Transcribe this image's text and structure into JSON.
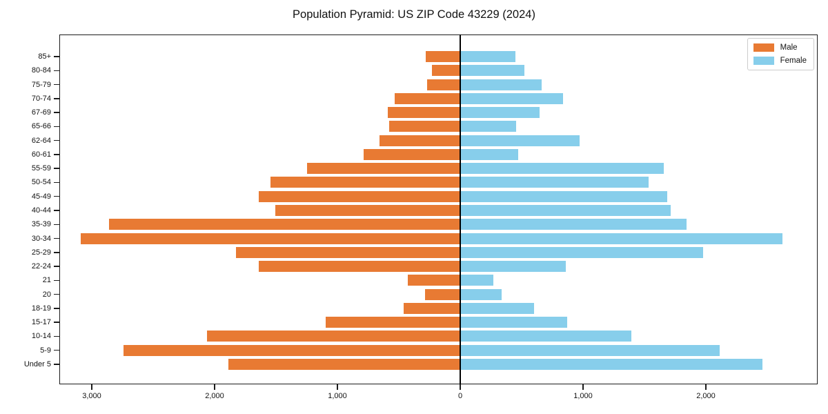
{
  "title": "Population Pyramid: US ZIP Code 43229 (2024)",
  "legend": {
    "male_label": "Male",
    "female_label": "Female"
  },
  "colors": {
    "male": "#e87a33",
    "female": "#87ceeb",
    "axis": "#1a1a1a",
    "zero_line": "#000000",
    "legend_border": "#cccccc"
  },
  "chart_data": {
    "type": "bar",
    "subtype": "population-pyramid",
    "title": "Population Pyramid: US ZIP Code 43229 (2024)",
    "categories": [
      "85+",
      "80-84",
      "75-79",
      "70-74",
      "67-69",
      "65-66",
      "62-64",
      "60-61",
      "55-59",
      "50-54",
      "45-49",
      "40-44",
      "35-39",
      "30-34",
      "25-29",
      "22-24",
      "21",
      "20",
      "18-19",
      "15-17",
      "10-14",
      "5-9",
      "Under 5"
    ],
    "series": [
      {
        "name": "Male",
        "side": "left",
        "color": "#e87a33",
        "values": [
          280,
          230,
          270,
          535,
          590,
          580,
          660,
          785,
          1245,
          1545,
          1640,
          1505,
          2860,
          3090,
          1825,
          1640,
          425,
          285,
          460,
          1095,
          2060,
          2740,
          1885
        ]
      },
      {
        "name": "Female",
        "side": "right",
        "color": "#87ceeb",
        "values": [
          450,
          525,
          665,
          835,
          645,
          455,
          970,
          470,
          1655,
          1535,
          1685,
          1715,
          1840,
          2625,
          1975,
          860,
          270,
          335,
          600,
          870,
          1395,
          2110,
          2460
        ]
      }
    ],
    "x_ticks": [
      {
        "value": -3000,
        "label": "3,000"
      },
      {
        "value": -2000,
        "label": "2,000"
      },
      {
        "value": -1000,
        "label": "1,000"
      },
      {
        "value": 0,
        "label": "0"
      },
      {
        "value": 1000,
        "label": "1,000"
      },
      {
        "value": 2000,
        "label": "2,000"
      }
    ],
    "xlim": [
      -3264,
      2910
    ],
    "grid": false,
    "legend_position": "upper right"
  }
}
